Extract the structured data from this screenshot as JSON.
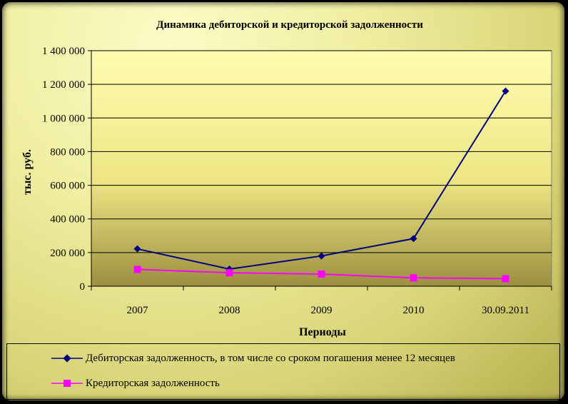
{
  "chart_data": {
    "type": "line",
    "title": "Динамика дебиторской и кредиторской задолженности",
    "xlabel": "Периоды",
    "ylabel": "тыс. руб.",
    "categories": [
      "2007",
      "2008",
      "2009",
      "2010",
      "30.09.2011"
    ],
    "ylim": [
      0,
      1400000
    ],
    "ytick_labels": [
      "0",
      "200 000",
      "400 000",
      "600 000",
      "800 000",
      "1 000 000",
      "1 200 000",
      "1 400 000"
    ],
    "grid": true,
    "legend_position": "bottom",
    "series": [
      {
        "name": "Дебиторская задолженность, в том числе со сроком погашения менее 12 месяцев",
        "values": [
          222000,
          102000,
          180000,
          283000,
          1160000
        ],
        "color": "#000080",
        "marker": "diamond"
      },
      {
        "name": "Кредиторская задолженность",
        "values": [
          100000,
          80000,
          72000,
          50000,
          45000
        ],
        "color": "#ff00ff",
        "marker": "square"
      }
    ]
  }
}
